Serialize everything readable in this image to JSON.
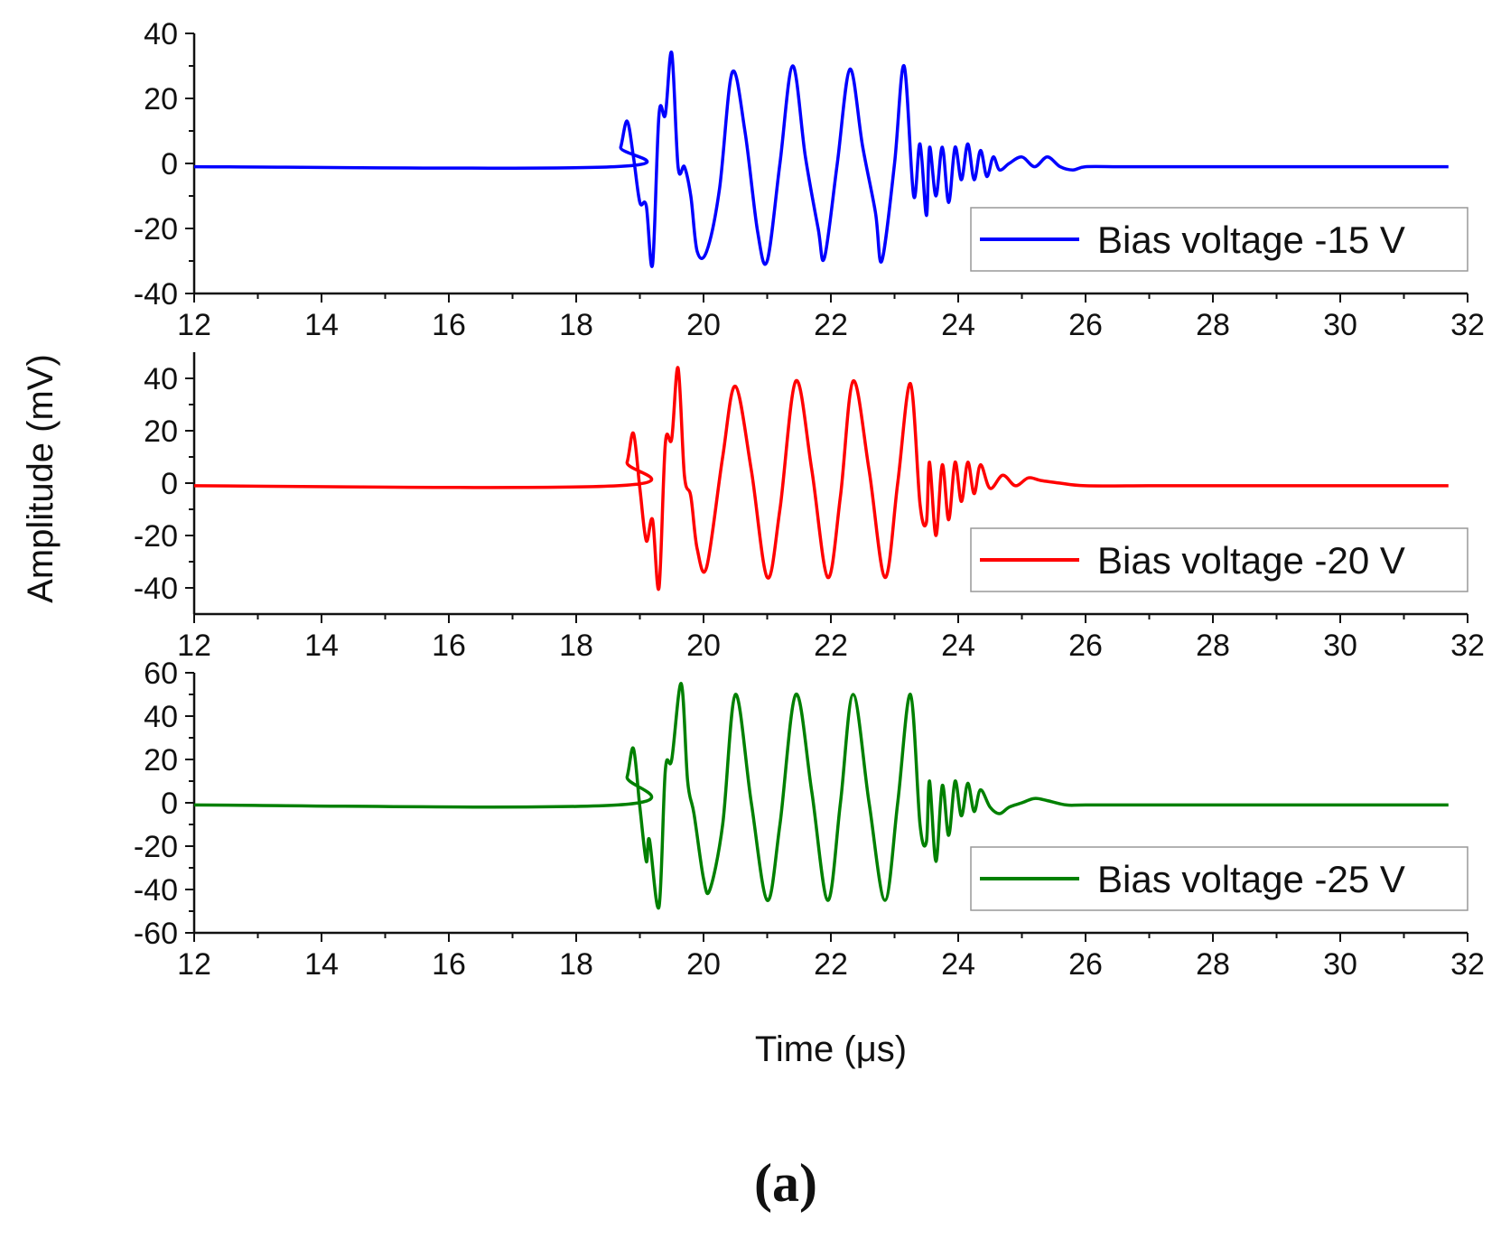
{
  "figure_label": "(a)",
  "y_axis_title": "Amplitude (mV)",
  "x_axis_title": "Time (μs)",
  "chart_data": [
    {
      "type": "line",
      "xlabel": "Time (μs)",
      "ylabel": "Amplitude (mV)",
      "xlim": [
        12,
        32
      ],
      "ylim": [
        -40,
        40
      ],
      "xticks": [
        12,
        14,
        16,
        18,
        20,
        22,
        24,
        26,
        28,
        30,
        32
      ],
      "yticks": [
        -40,
        -20,
        0,
        20,
        40
      ],
      "legend": "Bias voltage -15 V",
      "legend_position": "bottom-right",
      "color": "#0000ff",
      "x": [
        12,
        18.6,
        18.7,
        18.8,
        18.9,
        19.0,
        19.1,
        19.2,
        19.3,
        19.4,
        19.5,
        19.6,
        19.7,
        19.8,
        19.9,
        20.05,
        20.25,
        20.45,
        20.65,
        20.85,
        21.0,
        21.2,
        21.4,
        21.6,
        21.8,
        21.9,
        22.1,
        22.3,
        22.5,
        22.7,
        22.8,
        23.0,
        23.15,
        23.3,
        23.4,
        23.5,
        23.55,
        23.65,
        23.75,
        23.85,
        23.95,
        24.05,
        24.15,
        24.25,
        24.35,
        24.45,
        24.55,
        24.65,
        24.8,
        25.0,
        25.2,
        25.4,
        25.6,
        25.8,
        26.0,
        26.5,
        27.0,
        27.5,
        28.0,
        29.0,
        30.0,
        31.0,
        31.7
      ],
      "series": [
        {
          "name": "Bias voltage -15 V",
          "values": [
            -1,
            -1,
            5,
            13,
            2,
            -12,
            -13,
            -31,
            15,
            15,
            34,
            -1,
            -1,
            -10,
            -27,
            -27,
            -8,
            28,
            10,
            -21,
            -30,
            0,
            30,
            2,
            -20,
            -29,
            0,
            29,
            5,
            -15,
            -30,
            0,
            30,
            -10,
            6,
            -16,
            5,
            -10,
            5,
            -12,
            5,
            -5,
            6,
            -5,
            4,
            -4,
            2,
            -2,
            0,
            2,
            -1,
            2,
            -1,
            -2,
            -1,
            -1,
            -1,
            -1,
            -1,
            -1,
            -1,
            -1,
            -1
          ]
        }
      ]
    },
    {
      "type": "line",
      "xlabel": "Time (μs)",
      "ylabel": "Amplitude (mV)",
      "xlim": [
        12,
        32
      ],
      "ylim": [
        -50,
        50
      ],
      "xticks": [
        12,
        14,
        16,
        18,
        20,
        22,
        24,
        26,
        28,
        30,
        32
      ],
      "yticks": [
        -40,
        -20,
        0,
        20,
        40
      ],
      "legend": "Bias voltage -20 V",
      "legend_position": "bottom-right",
      "color": "#ff0000",
      "x": [
        12,
        18.65,
        18.8,
        18.9,
        19.0,
        19.1,
        19.2,
        19.3,
        19.4,
        19.5,
        19.6,
        19.7,
        19.8,
        19.9,
        20.05,
        20.3,
        20.5,
        20.75,
        21.0,
        21.2,
        21.45,
        21.7,
        21.95,
        22.15,
        22.35,
        22.6,
        22.85,
        23.05,
        23.25,
        23.4,
        23.5,
        23.55,
        23.65,
        23.75,
        23.85,
        23.95,
        24.05,
        24.15,
        24.25,
        24.35,
        24.5,
        24.7,
        24.9,
        25.1,
        25.3,
        25.6,
        26.0,
        27.0,
        28.0,
        29.0,
        30.0,
        31.0,
        31.7
      ],
      "series": [
        {
          "name": "Bias voltage -20 V",
          "values": [
            -1,
            -1,
            8,
            19,
            -2,
            -22,
            -14,
            -40,
            15,
            17,
            44,
            3,
            -5,
            -25,
            -32,
            10,
            37,
            5,
            -36,
            -10,
            39,
            5,
            -36,
            -5,
            39,
            5,
            -36,
            0,
            38,
            -8,
            -15,
            8,
            -20,
            7,
            -14,
            8,
            -7,
            8,
            -4,
            7,
            -2,
            3,
            -1,
            2,
            1,
            0,
            -1,
            -1,
            -1,
            -1,
            -1,
            -1,
            -1
          ]
        }
      ]
    },
    {
      "type": "line",
      "xlabel": "Time (μs)",
      "ylabel": "Amplitude (mV)",
      "xlim": [
        12,
        32
      ],
      "ylim": [
        -60,
        60
      ],
      "xticks": [
        12,
        14,
        16,
        18,
        20,
        22,
        24,
        26,
        28,
        30,
        32
      ],
      "yticks": [
        -60,
        -40,
        -20,
        0,
        20,
        40,
        60
      ],
      "legend": "Bias voltage -25 V",
      "legend_position": "bottom-right",
      "color": "#008000",
      "x": [
        12,
        18.65,
        18.8,
        18.9,
        19.0,
        19.1,
        19.15,
        19.3,
        19.4,
        19.5,
        19.65,
        19.75,
        19.85,
        20.0,
        20.1,
        20.3,
        20.5,
        20.75,
        21.0,
        21.2,
        21.45,
        21.7,
        21.95,
        22.15,
        22.35,
        22.6,
        22.85,
        23.05,
        23.25,
        23.4,
        23.5,
        23.55,
        23.65,
        23.75,
        23.85,
        23.95,
        24.05,
        24.15,
        24.25,
        24.35,
        24.5,
        24.65,
        24.8,
        25.0,
        25.2,
        25.4,
        25.7,
        26.0,
        27.0,
        28.0,
        29.0,
        30.0,
        31.0,
        31.7
      ],
      "series": [
        {
          "name": "Bias voltage -25 V",
          "values": [
            -1,
            -1,
            12,
            25,
            -2,
            -27,
            -17,
            -48,
            15,
            20,
            55,
            10,
            -5,
            -35,
            -40,
            -10,
            50,
            0,
            -45,
            -10,
            50,
            5,
            -45,
            0,
            50,
            0,
            -45,
            0,
            50,
            -10,
            -18,
            10,
            -27,
            8,
            -15,
            10,
            -6,
            9,
            -4,
            6,
            -2,
            -5,
            -2,
            0,
            2,
            1,
            -1,
            -1,
            -1,
            -1,
            -1,
            -1,
            -1,
            -1
          ]
        }
      ]
    }
  ]
}
